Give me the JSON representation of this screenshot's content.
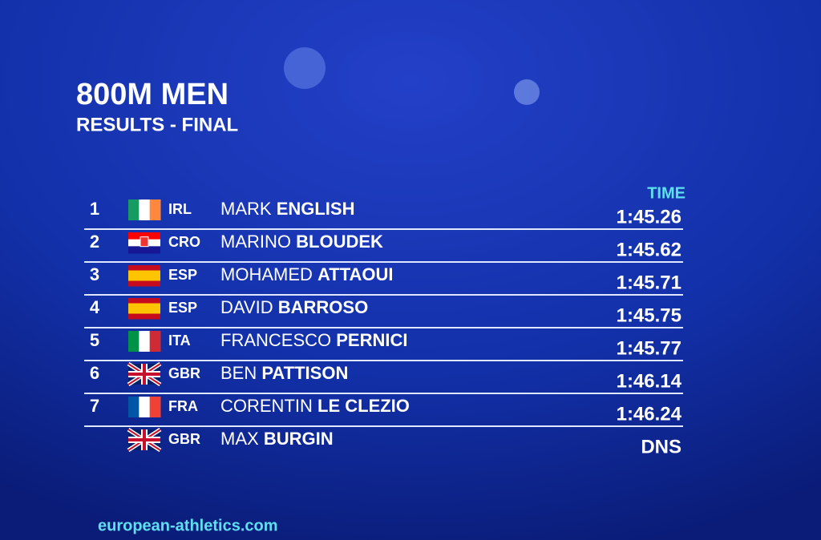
{
  "header": {
    "title": "800M MEN",
    "subtitle": "RESULTS - FINAL",
    "column": "TIME"
  },
  "table": {
    "rows": [
      {
        "rank": "1",
        "country": "IRL",
        "first": "MARK",
        "last": "ENGLISH",
        "time": "1:45.26"
      },
      {
        "rank": "2",
        "country": "CRO",
        "first": "MARINO",
        "last": "BLOUDEK",
        "time": "1:45.62"
      },
      {
        "rank": "3",
        "country": "ESP",
        "first": "MOHAMED",
        "last": "ATTAOUI",
        "time": "1:45.71"
      },
      {
        "rank": "4",
        "country": "ESP",
        "first": "DAVID",
        "last": "BARROSO",
        "time": "1:45.75"
      },
      {
        "rank": "5",
        "country": "ITA",
        "first": "FRANCESCO",
        "last": "PERNICI",
        "time": "1:45.77"
      },
      {
        "rank": "6",
        "country": "GBR",
        "first": "BEN",
        "last": "PATTISON",
        "time": "1:46.14"
      },
      {
        "rank": "7",
        "country": "FRA",
        "first": "CORENTIN",
        "last": "LE CLEZIO",
        "time": "1:46.24"
      },
      {
        "country": "GBR",
        "first": "MAX",
        "last": "BURGIN",
        "time": "DNS"
      }
    ]
  },
  "footer": {
    "url": "european-athletics.com"
  }
}
